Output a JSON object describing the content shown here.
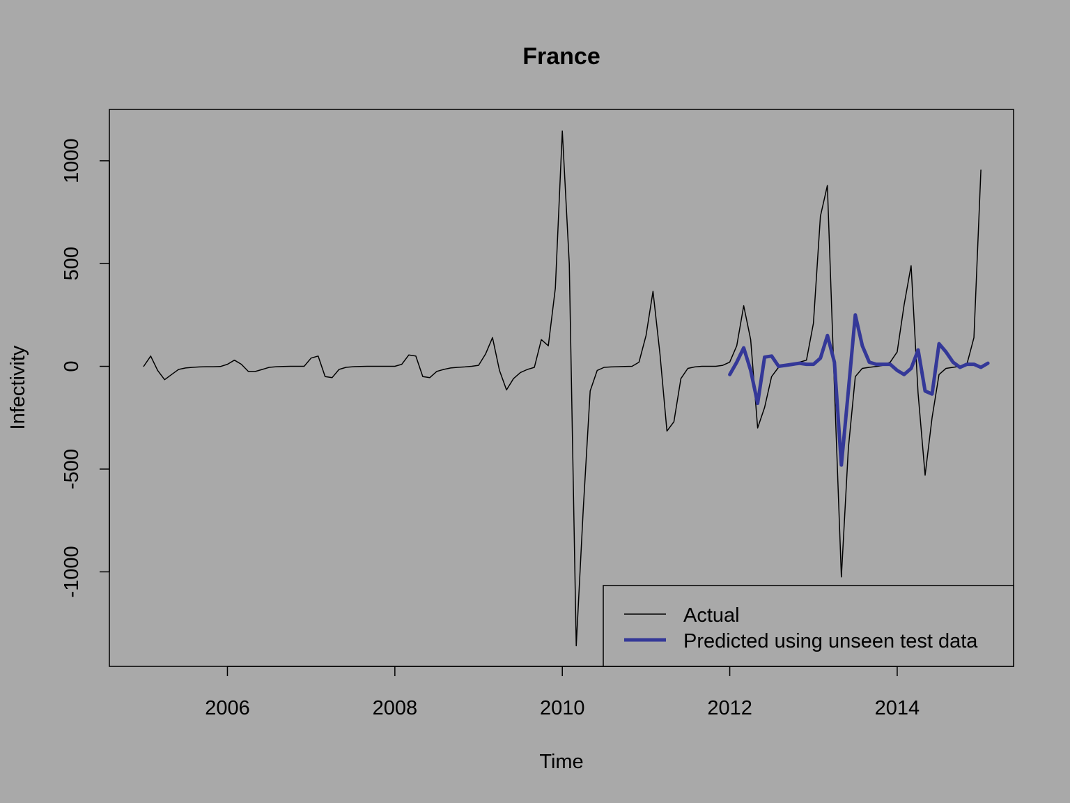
{
  "chart_data": {
    "type": "line",
    "title": "France",
    "xlabel": "Time",
    "ylabel": "Infectivity",
    "xlim": [
      2004.59,
      2015.39
    ],
    "ylim": [
      -1460,
      1250
    ],
    "x_ticks": [
      2006,
      2008,
      2010,
      2012,
      2014
    ],
    "x_tick_labels": [
      "2006",
      "2008",
      "2010",
      "2012",
      "2014"
    ],
    "y_ticks": [
      -1000,
      -500,
      0,
      500,
      1000
    ],
    "y_tick_labels": [
      "-1000",
      "-500",
      "0",
      "500",
      "1000"
    ],
    "legend_position": "bottom-right",
    "series": [
      {
        "name": "Actual",
        "color": "#000000",
        "x_start": 2005.0,
        "x_step": 0.08333,
        "values": [
          0,
          50,
          -20,
          -65,
          -40,
          -15,
          -8,
          -5,
          -3,
          -2,
          -2,
          -1,
          10,
          30,
          10,
          -25,
          -25,
          -15,
          -5,
          -2,
          -1,
          0,
          0,
          0,
          40,
          50,
          -50,
          -55,
          -15,
          -5,
          -2,
          -1,
          0,
          0,
          0,
          0,
          0,
          10,
          55,
          50,
          -50,
          -55,
          -25,
          -15,
          -8,
          -5,
          -3,
          0,
          5,
          60,
          140,
          -20,
          -115,
          -60,
          -30,
          -15,
          -5,
          130,
          100,
          380,
          1145,
          500,
          -1360,
          -700,
          -120,
          -20,
          -5,
          -3,
          -2,
          -1,
          0,
          20,
          150,
          365,
          60,
          -315,
          -270,
          -60,
          -10,
          -3,
          0,
          0,
          0,
          5,
          20,
          100,
          295,
          130,
          -300,
          -200,
          -50,
          -5,
          5,
          10,
          20,
          30,
          210,
          730,
          880,
          -100,
          -1025,
          -400,
          -50,
          -10,
          -5,
          -1,
          5,
          20,
          70,
          300,
          490,
          -130,
          -530,
          -250,
          -40,
          -10,
          -5,
          0,
          10,
          140,
          955
        ]
      },
      {
        "name": "Predicted using unseen test data",
        "color": "#343898",
        "x_start": 2012.0,
        "x_step": 0.08333,
        "values": [
          -40,
          20,
          90,
          -20,
          -180,
          45,
          50,
          0,
          5,
          10,
          15,
          10,
          10,
          40,
          150,
          20,
          -480,
          -120,
          250,
          100,
          20,
          10,
          10,
          10,
          -20,
          -40,
          -10,
          80,
          -120,
          -135,
          110,
          70,
          20,
          -5,
          10,
          10,
          -5,
          15
        ]
      }
    ]
  }
}
